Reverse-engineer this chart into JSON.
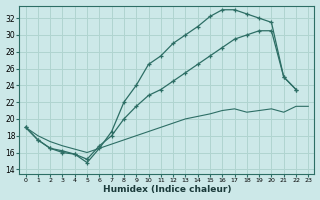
{
  "bg_color": "#cce8e8",
  "grid_color": "#b0d4d0",
  "line_color": "#2d6e65",
  "xlabel": "Humidex (Indice chaleur)",
  "xlim": [
    -0.5,
    23.5
  ],
  "ylim": [
    13.5,
    33.5
  ],
  "yticks": [
    14,
    16,
    18,
    20,
    22,
    24,
    26,
    28,
    30,
    32
  ],
  "xticks": [
    0,
    1,
    2,
    3,
    4,
    5,
    6,
    7,
    8,
    9,
    10,
    11,
    12,
    13,
    14,
    15,
    16,
    17,
    18,
    19,
    20,
    21,
    22,
    23
  ],
  "curve1_x": [
    0,
    1,
    2,
    3,
    4,
    5,
    6,
    7,
    8,
    9,
    10,
    11,
    12,
    13,
    14,
    15,
    16,
    17,
    18,
    19,
    20,
    21,
    22
  ],
  "curve1_y": [
    19.0,
    17.5,
    16.5,
    16.0,
    15.8,
    14.8,
    16.5,
    18.5,
    22.0,
    24.0,
    26.5,
    27.5,
    29.0,
    30.0,
    31.0,
    32.2,
    33.0,
    33.0,
    32.5,
    32.0,
    31.5,
    25.0,
    23.5
  ],
  "curve2_x": [
    0,
    1,
    2,
    3,
    4,
    5,
    6,
    7,
    8,
    9,
    10,
    11,
    12,
    13,
    14,
    15,
    16,
    17,
    18,
    19,
    20,
    21,
    22
  ],
  "curve2_y": [
    19.0,
    17.5,
    16.5,
    16.2,
    15.8,
    15.2,
    16.8,
    18.0,
    20.0,
    21.5,
    22.8,
    23.5,
    24.5,
    25.5,
    26.5,
    27.5,
    28.5,
    29.5,
    30.0,
    30.5,
    30.5,
    25.0,
    23.5
  ],
  "curve3_x": [
    0,
    1,
    2,
    3,
    4,
    5,
    6,
    7,
    8,
    9,
    10,
    11,
    12,
    13,
    14,
    15,
    16,
    17,
    18,
    19,
    20,
    21,
    22,
    23
  ],
  "curve3_y": [
    19.0,
    18.0,
    17.3,
    16.8,
    16.4,
    16.0,
    16.5,
    17.0,
    17.5,
    18.0,
    18.5,
    19.0,
    19.5,
    20.0,
    20.3,
    20.6,
    21.0,
    21.2,
    20.8,
    21.0,
    21.2,
    20.8,
    21.5,
    21.5
  ]
}
